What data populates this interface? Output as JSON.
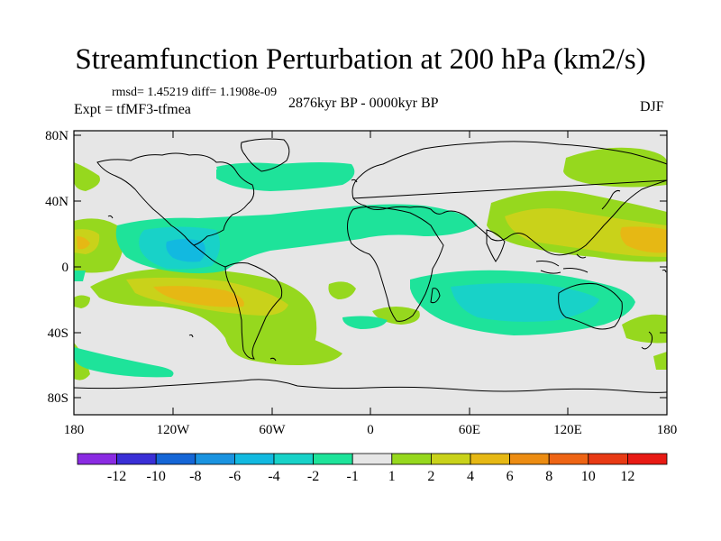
{
  "title": "Streamfunction Perturbation at 200 hPa (km2/s)",
  "stats_line": "rmsd= 1.45219 diff= 1.1908e-09",
  "experiment": "Expt = tfMF3-tfmea",
  "period": "2876kyr BP - 0000kyr BP",
  "season": "DJF",
  "map": {
    "lat_ticks": [
      "80N",
      "40N",
      "0",
      "40S",
      "80S"
    ],
    "lon_ticks": [
      "180",
      "120W",
      "60W",
      "0",
      "60E",
      "120E",
      "180"
    ]
  },
  "colorbar": {
    "labels": [
      "-12",
      "-10",
      "-8",
      "-6",
      "-4",
      "-2",
      "-1",
      "1",
      "2",
      "4",
      "6",
      "8",
      "10",
      "12"
    ],
    "colors": [
      "#8a2be2",
      "#3a2fd6",
      "#1566d6",
      "#1a93e0",
      "#12b9e0",
      "#18d2c8",
      "#1ee39a",
      "#e6e6e6",
      "#96d81e",
      "#c9d21a",
      "#e6b814",
      "#ec8c12",
      "#ee6414",
      "#e83a14",
      "#e81a14"
    ]
  },
  "colors": {
    "ocean_neutral": "#e6e6e6",
    "coastline": "#000000"
  }
}
